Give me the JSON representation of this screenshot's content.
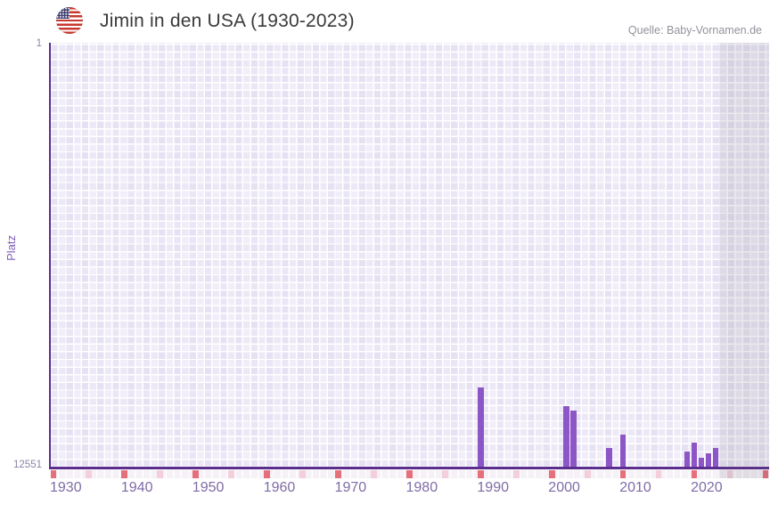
{
  "header": {
    "title": "Jimin in den USA (1930-2023)",
    "source": "Quelle: Baby-Vornamen.de",
    "flag_icon": "us-flag"
  },
  "y_axis": {
    "title": "Platz",
    "top_tick": "1",
    "bottom_tick": "12551"
  },
  "x_axis": {
    "ticks": [
      "1930",
      "1940",
      "1950",
      "1960",
      "1970",
      "1980",
      "1990",
      "2000",
      "2010",
      "2020"
    ]
  },
  "chart_data": {
    "type": "bar",
    "title": "Jimin in den USA (1930-2023)",
    "series_name": "Jimin",
    "xlabel": "",
    "ylabel": "Platz",
    "x_domain": [
      1930,
      2030
    ],
    "data_year_range": [
      1930,
      2023
    ],
    "ylim_top": 1,
    "ylim_bottom": 12551,
    "y_inverted": true,
    "grid": true,
    "legend_position": "none",
    "x": [
      1990,
      2002,
      2003,
      2008,
      2010,
      2019,
      2020,
      2021,
      2022,
      2023
    ],
    "values": [
      10170,
      10720,
      10870,
      11970,
      11580,
      12070,
      11820,
      12255,
      12115,
      11970
    ],
    "decade_markers": [
      1930,
      1940,
      1950,
      1960,
      1970,
      1980,
      1990,
      2000,
      2010,
      2020,
      2030
    ],
    "half_decade_markers": [
      1935,
      1945,
      1955,
      1965,
      1975,
      1985,
      1995,
      2005,
      2015,
      2025
    ],
    "future_shaded_years": [
      2024,
      2030
    ]
  },
  "colors": {
    "bar": "#8d56c6",
    "axis_line": "#5b2d8e",
    "decade_marker": "#e5707b",
    "half_decade_marker": "#f2cfda",
    "plot_background": "#f1eef9",
    "future_shade": "rgba(97,92,115,0.13)",
    "x_tick_text": "#7f6ca6",
    "y_tick_text": "#8b84a6",
    "y_axis_title_text": "#7e5fb5",
    "title_text": "#3a3a3a",
    "source_text": "#95929b"
  }
}
